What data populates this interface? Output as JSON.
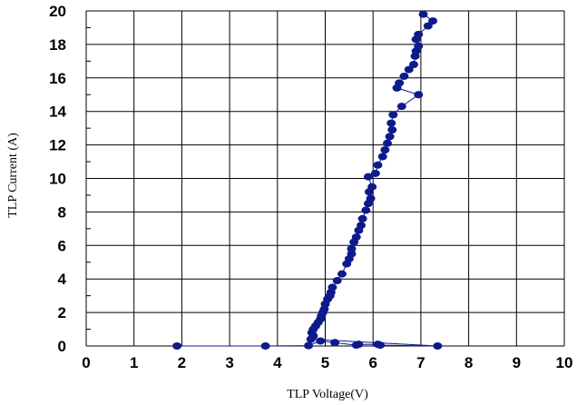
{
  "chart_data": {
    "type": "scatter",
    "title": "",
    "xlabel": "TLP Voltage(V)",
    "ylabel": "TLP Current (A)",
    "xlim": [
      0,
      10
    ],
    "ylim": [
      0,
      20
    ],
    "xticks": [
      "0",
      "1",
      "2",
      "3",
      "4",
      "5",
      "6",
      "7",
      "8",
      "9",
      "10"
    ],
    "yticks": [
      "0",
      "2",
      "4",
      "6",
      "8",
      "10",
      "12",
      "14",
      "16",
      "18",
      "20"
    ],
    "grid": true,
    "legend": "none",
    "series": [
      {
        "color": "#0d1a8c",
        "connected": true,
        "points": [
          [
            1.9,
            0.0
          ],
          [
            3.75,
            0.0
          ],
          [
            4.65,
            0.02
          ],
          [
            4.9,
            0.3
          ],
          [
            5.2,
            0.2
          ],
          [
            5.65,
            0.05
          ],
          [
            5.7,
            0.1
          ],
          [
            6.1,
            0.1
          ],
          [
            6.15,
            0.05
          ],
          [
            7.35,
            0.0
          ],
          [
            4.7,
            0.4
          ],
          [
            4.75,
            0.6
          ],
          [
            4.72,
            0.8
          ],
          [
            4.75,
            1.0
          ],
          [
            4.8,
            1.2
          ],
          [
            4.85,
            1.4
          ],
          [
            4.9,
            1.6
          ],
          [
            4.92,
            1.8
          ],
          [
            4.95,
            2.0
          ],
          [
            4.98,
            2.2
          ],
          [
            5.0,
            2.5
          ],
          [
            5.05,
            2.8
          ],
          [
            5.1,
            3.0
          ],
          [
            5.12,
            3.2
          ],
          [
            5.15,
            3.5
          ],
          [
            5.25,
            3.9
          ],
          [
            5.35,
            4.3
          ],
          [
            5.45,
            4.9
          ],
          [
            5.5,
            5.2
          ],
          [
            5.55,
            5.5
          ],
          [
            5.55,
            5.8
          ],
          [
            5.6,
            6.2
          ],
          [
            5.65,
            6.5
          ],
          [
            5.7,
            6.9
          ],
          [
            5.75,
            7.2
          ],
          [
            5.78,
            7.6
          ],
          [
            5.85,
            8.1
          ],
          [
            5.9,
            8.5
          ],
          [
            5.95,
            8.8
          ],
          [
            5.92,
            9.2
          ],
          [
            5.98,
            9.5
          ],
          [
            5.9,
            10.1
          ],
          [
            6.05,
            10.3
          ],
          [
            6.1,
            10.8
          ],
          [
            6.2,
            11.3
          ],
          [
            6.25,
            11.7
          ],
          [
            6.3,
            12.1
          ],
          [
            6.35,
            12.5
          ],
          [
            6.4,
            12.9
          ],
          [
            6.38,
            13.3
          ],
          [
            6.42,
            13.8
          ],
          [
            6.6,
            14.3
          ],
          [
            6.95,
            15.0
          ],
          [
            6.5,
            15.4
          ],
          [
            6.55,
            15.7
          ],
          [
            6.65,
            16.1
          ],
          [
            6.75,
            16.5
          ],
          [
            6.85,
            16.8
          ],
          [
            6.88,
            17.3
          ],
          [
            6.9,
            17.6
          ],
          [
            6.95,
            17.9
          ],
          [
            6.9,
            18.3
          ],
          [
            6.95,
            18.6
          ],
          [
            7.15,
            19.1
          ],
          [
            7.25,
            19.4
          ],
          [
            7.05,
            19.8
          ]
        ]
      }
    ]
  }
}
